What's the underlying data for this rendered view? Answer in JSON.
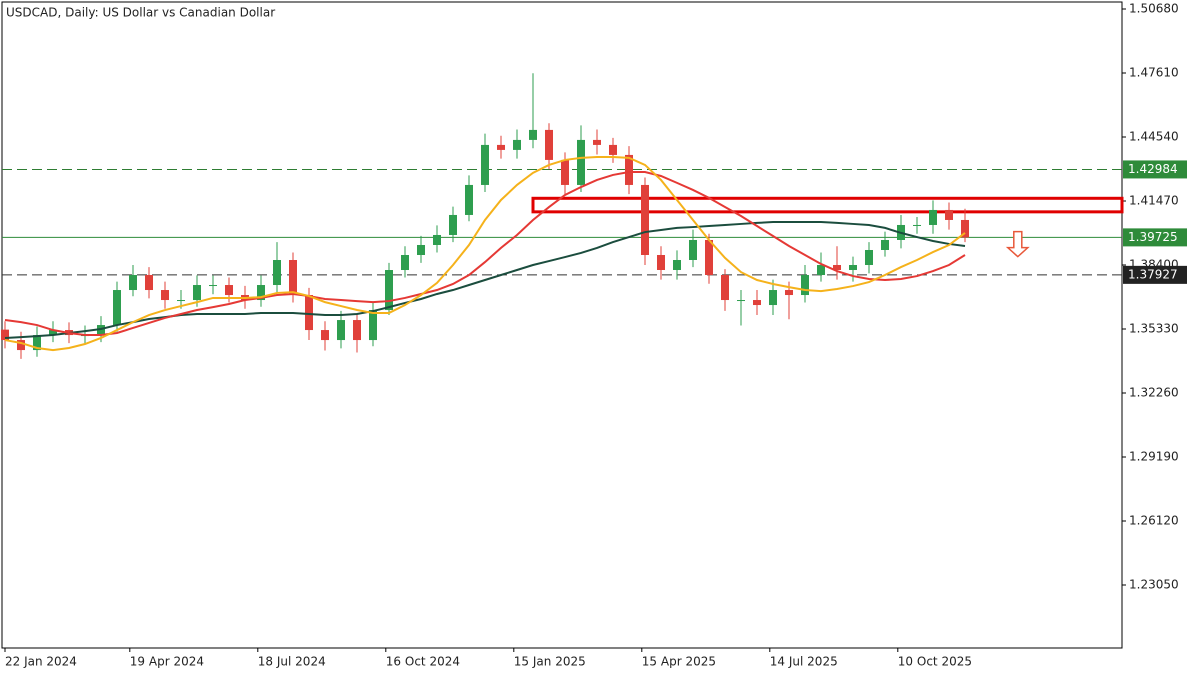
{
  "chart_data": {
    "type": "candlestick",
    "title": "USDCAD, Daily:  US Dollar vs Canadian Dollar",
    "up_color": "#2e9e4f",
    "down_color": "#e0403a",
    "xlim": [
      -0.3125,
      69.8125
    ],
    "xticks": [
      {
        "value": 0,
        "label": "22 Jan 2024"
      },
      {
        "value": 7.8,
        "label": "19 Apr 2024"
      },
      {
        "value": 15.8,
        "label": "18 Jul 2024"
      },
      {
        "value": 23.8,
        "label": "16 Oct 2024"
      },
      {
        "value": 31.8,
        "label": "15 Jan 2025"
      },
      {
        "value": 39.8,
        "label": "15 Apr 2025"
      },
      {
        "value": 47.8,
        "label": "14 Jul 2025"
      },
      {
        "value": 55.8,
        "label": "10 Oct 2025"
      }
    ],
    "ylim": [
      1.20028,
      1.51112
    ],
    "yticks": [
      {
        "value": 1.5068,
        "label": "1.50680"
      },
      {
        "value": 1.4761,
        "label": "1.47610"
      },
      {
        "value": 1.4454,
        "label": "1.44540"
      },
      {
        "value": 1.4147,
        "label": "1.41470"
      },
      {
        "value": 1.384,
        "label": "1.38400"
      },
      {
        "value": 1.3533,
        "label": "1.35330"
      },
      {
        "value": 1.3226,
        "label": "1.32260"
      },
      {
        "value": 1.2919,
        "label": "1.29190"
      },
      {
        "value": 1.2612,
        "label": "1.26120"
      },
      {
        "value": 1.2305,
        "label": "1.23050"
      }
    ],
    "open": [
      1.353,
      1.348,
      1.3432,
      1.3504,
      1.3528,
      1.3504,
      1.3504,
      1.3552,
      1.372,
      1.3792,
      1.372,
      1.3672,
      1.3672,
      1.3744,
      1.3744,
      1.3696,
      1.3672,
      1.3744,
      1.3864,
      1.3696,
      1.3528,
      1.348,
      1.3576,
      1.348,
      1.3624,
      1.3816,
      1.3888,
      1.3936,
      1.3984,
      1.408,
      1.4224,
      1.4416,
      1.4392,
      1.444,
      1.4488,
      1.4344,
      1.4224,
      1.444,
      1.4416,
      1.4368,
      1.4224,
      1.3888,
      1.3816,
      1.3864,
      1.396,
      1.3792,
      1.3672,
      1.3672,
      1.3648,
      1.372,
      1.3696,
      1.3792,
      1.384,
      1.3816,
      1.384,
      1.3912,
      1.396,
      1.4032,
      1.4032,
      1.4104,
      1.4056
    ],
    "high": [
      1.357,
      1.352,
      1.3545,
      1.357,
      1.3565,
      1.355,
      1.3595,
      1.376,
      1.384,
      1.383,
      1.376,
      1.372,
      1.379,
      1.379,
      1.378,
      1.374,
      1.379,
      1.395,
      1.39,
      1.373,
      1.357,
      1.362,
      1.361,
      1.366,
      1.385,
      1.393,
      1.398,
      1.403,
      1.412,
      1.427,
      1.447,
      1.446,
      1.449,
      1.476,
      1.452,
      1.438,
      1.451,
      1.449,
      1.445,
      1.441,
      1.426,
      1.393,
      1.391,
      1.401,
      1.399,
      1.382,
      1.372,
      1.372,
      1.377,
      1.376,
      1.384,
      1.39,
      1.393,
      1.388,
      1.395,
      1.4,
      1.408,
      1.407,
      1.415,
      1.414,
      1.411
    ],
    "low": [
      1.344,
      1.339,
      1.34,
      1.347,
      1.3465,
      1.346,
      1.347,
      1.352,
      1.369,
      1.368,
      1.363,
      1.363,
      1.364,
      1.37,
      1.366,
      1.363,
      1.364,
      1.371,
      1.366,
      1.348,
      1.343,
      1.344,
      1.342,
      1.345,
      1.36,
      1.378,
      1.385,
      1.39,
      1.395,
      1.405,
      1.419,
      1.435,
      1.435,
      1.44,
      1.43,
      1.418,
      1.419,
      1.437,
      1.433,
      1.418,
      1.384,
      1.377,
      1.377,
      1.383,
      1.375,
      1.362,
      1.355,
      1.36,
      1.36,
      1.358,
      1.366,
      1.376,
      1.377,
      1.376,
      1.38,
      1.388,
      1.392,
      1.399,
      1.399,
      1.401,
      1.395
    ],
    "close": [
      1.348,
      1.3432,
      1.3504,
      1.3528,
      1.3504,
      1.3504,
      1.3552,
      1.372,
      1.3792,
      1.372,
      1.3672,
      1.3672,
      1.3744,
      1.3744,
      1.3696,
      1.3672,
      1.3744,
      1.3864,
      1.3696,
      1.3528,
      1.348,
      1.3576,
      1.348,
      1.3624,
      1.3816,
      1.3888,
      1.3936,
      1.3984,
      1.408,
      1.4224,
      1.4416,
      1.4392,
      1.444,
      1.4488,
      1.4344,
      1.4224,
      1.444,
      1.4416,
      1.4368,
      1.4224,
      1.3888,
      1.3816,
      1.3864,
      1.396,
      1.3792,
      1.3672,
      1.3672,
      1.3648,
      1.372,
      1.3696,
      1.3792,
      1.384,
      1.3816,
      1.384,
      1.3912,
      1.396,
      1.4032,
      1.4032,
      1.4104,
      1.4056,
      1.3972
    ],
    "lines": [
      {
        "color": "#1b4d3e",
        "values": [
          1.349,
          1.3494,
          1.3499,
          1.3504,
          1.3514,
          1.3523,
          1.3533,
          1.3552,
          1.3566,
          1.3581,
          1.359,
          1.36,
          1.3605,
          1.3605,
          1.3605,
          1.3605,
          1.361,
          1.361,
          1.361,
          1.3605,
          1.36,
          1.36,
          1.3605,
          1.3619,
          1.3638,
          1.3658,
          1.3677,
          1.3701,
          1.372,
          1.3744,
          1.3768,
          1.3792,
          1.3816,
          1.384,
          1.3859,
          1.3878,
          1.3898,
          1.3922,
          1.395,
          1.3974,
          1.3998,
          1.4008,
          1.4018,
          1.4022,
          1.4027,
          1.4032,
          1.4037,
          1.4042,
          1.4046,
          1.4046,
          1.4046,
          1.4046,
          1.4042,
          1.4037,
          1.4032,
          1.4018,
          1.3994,
          1.3974,
          1.3955,
          1.3941,
          1.3931
        ]
      },
      {
        "color": "#e53935",
        "values": [
          1.3576,
          1.3566,
          1.3552,
          1.3528,
          1.3514,
          1.3504,
          1.3504,
          1.3514,
          1.3538,
          1.3562,
          1.3586,
          1.3605,
          1.3624,
          1.3638,
          1.3653,
          1.3672,
          1.3682,
          1.3696,
          1.3701,
          1.3691,
          1.3677,
          1.3672,
          1.3667,
          1.3662,
          1.3667,
          1.3682,
          1.3701,
          1.372,
          1.3749,
          1.3792,
          1.3854,
          1.3922,
          1.3984,
          1.4056,
          1.4118,
          1.4176,
          1.4214,
          1.4248,
          1.4272,
          1.4286,
          1.4286,
          1.4267,
          1.4234,
          1.42,
          1.4162,
          1.4118,
          1.4075,
          1.4027,
          1.3979,
          1.3931,
          1.3888,
          1.3845,
          1.3811,
          1.3787,
          1.3773,
          1.3768,
          1.3773,
          1.3787,
          1.3811,
          1.384,
          1.3888
        ]
      },
      {
        "color": "#f5b21b",
        "values": [
          1.348,
          1.3466,
          1.3442,
          1.3432,
          1.3442,
          1.3461,
          1.349,
          1.3528,
          1.3566,
          1.36,
          1.3624,
          1.3643,
          1.3662,
          1.3682,
          1.3682,
          1.3682,
          1.3686,
          1.3706,
          1.371,
          1.3691,
          1.3662,
          1.3643,
          1.3624,
          1.361,
          1.361,
          1.3648,
          1.3696,
          1.3754,
          1.384,
          1.3936,
          1.4056,
          1.4152,
          1.4224,
          1.4282,
          1.432,
          1.4344,
          1.4354,
          1.4358,
          1.4358,
          1.4354,
          1.432,
          1.4248,
          1.4152,
          1.4056,
          1.396,
          1.3874,
          1.3806,
          1.3768,
          1.3749,
          1.3734,
          1.372,
          1.3715,
          1.3725,
          1.3739,
          1.3758,
          1.3792,
          1.383,
          1.3864,
          1.3902,
          1.3936,
          1.3994
        ]
      }
    ],
    "levels": [
      {
        "value": 1.42984,
        "style": "dashed",
        "color": "#2e7d32",
        "label_bg": "#2e8b3a"
      },
      {
        "value": 1.39725,
        "style": "solid",
        "color": "#2e8b3a",
        "label_bg": "#2e8b3a"
      },
      {
        "value": 1.37927,
        "style": "dashed",
        "color": "#333333",
        "label_bg": "#222222"
      }
    ],
    "zone": {
      "x_start": 33,
      "from": 1.4095,
      "to": 1.416,
      "color": "#e00000"
    },
    "arrow": {
      "x": 63.3,
      "from": 1.4,
      "to": 1.388,
      "color": "#e8583a"
    }
  }
}
